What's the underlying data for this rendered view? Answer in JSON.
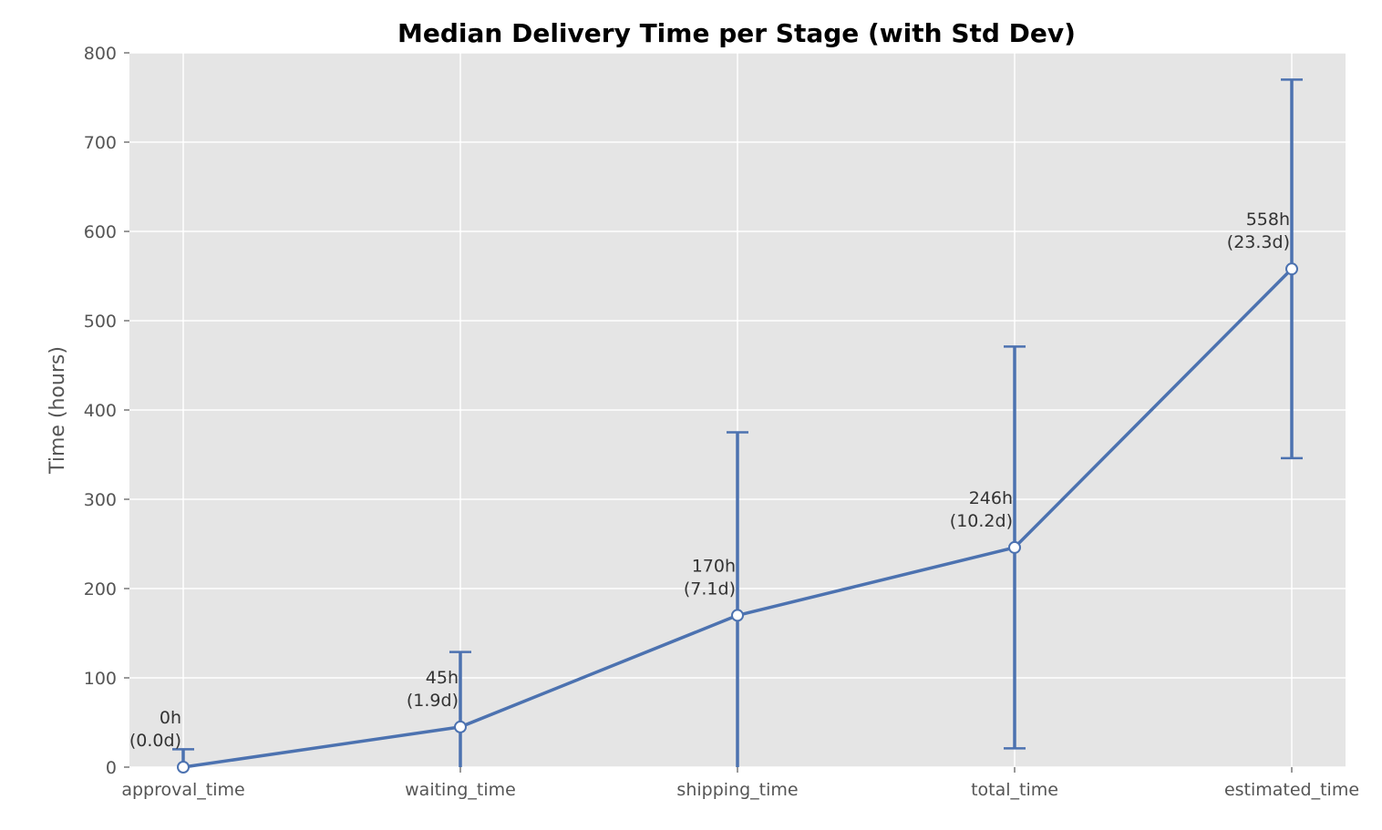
{
  "chart_data": {
    "type": "line",
    "title": "Median Delivery Time per Stage (with Std Dev)",
    "xlabel": "",
    "ylabel": "Time (hours)",
    "categories": [
      "approval_time",
      "waiting_time",
      "shipping_time",
      "total_time",
      "estimated_time"
    ],
    "values": [
      0,
      45,
      170,
      246,
      558
    ],
    "std_dev": [
      20,
      84,
      205,
      225,
      212
    ],
    "data_labels": [
      [
        "0h",
        "(0.0d)"
      ],
      [
        "45h",
        "(1.9d)"
      ],
      [
        "170h",
        "(7.1d)"
      ],
      [
        "246h",
        "(10.2d)"
      ],
      [
        "558h",
        "(23.3d)"
      ]
    ],
    "ylim": [
      0,
      800
    ],
    "yticks": [
      0,
      100,
      200,
      300,
      400,
      500,
      600,
      700,
      800
    ],
    "grid": true,
    "colors": {
      "line": "#4C72B0",
      "background": "#E5E5E5",
      "grid": "#FFFFFF",
      "marker_fill": "#FFFFFF"
    }
  }
}
